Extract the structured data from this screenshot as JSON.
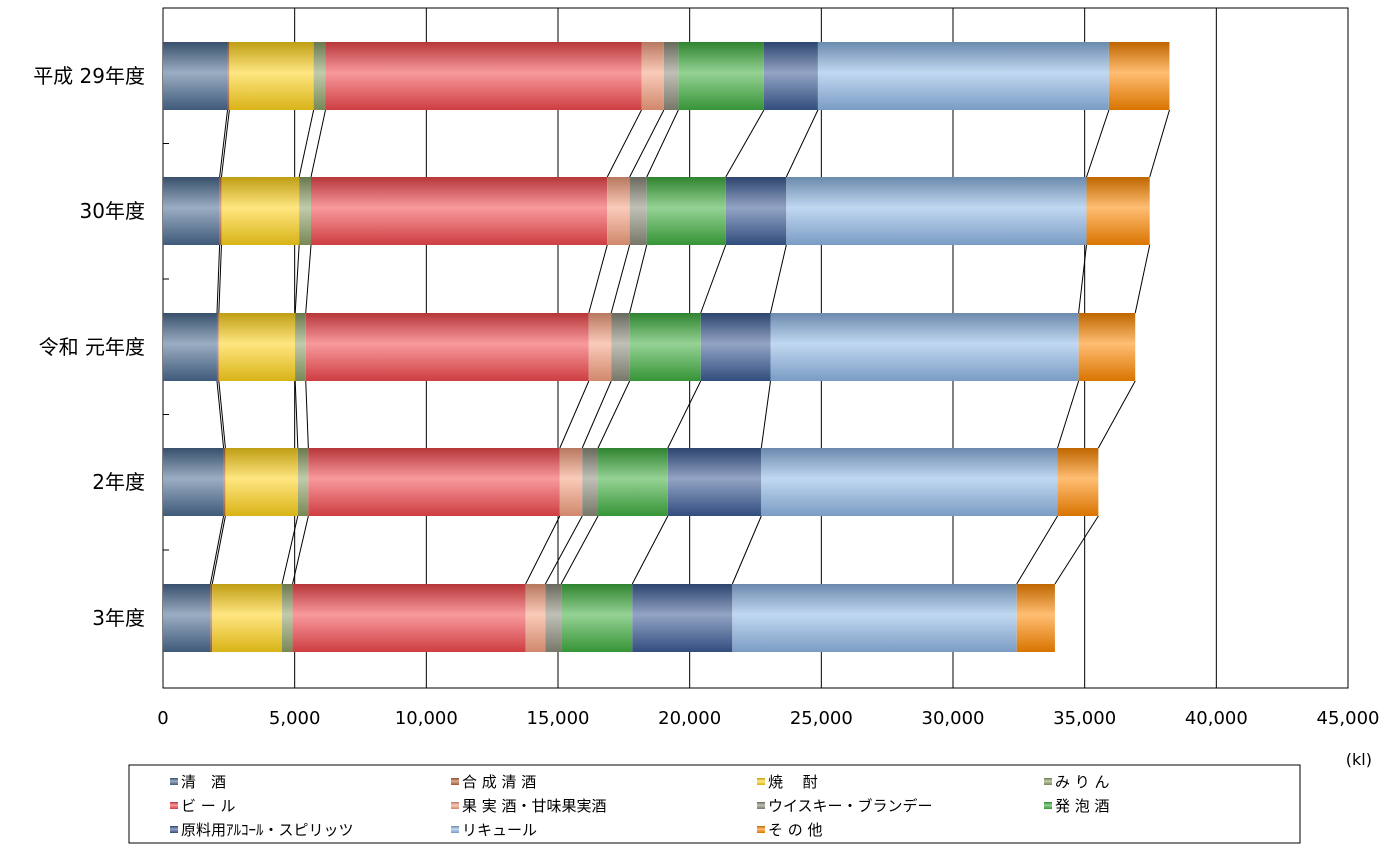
{
  "chart_data": {
    "type": "bar",
    "orientation": "horizontal",
    "stacked": true,
    "categories": [
      "平成 29年度",
      "30年度",
      "令和 元年度",
      "2年度",
      "3年度"
    ],
    "series": [
      {
        "name": "清　酒",
        "values": [
          2450,
          2150,
          2050,
          2300,
          1800
        ],
        "color": "#4a6a90"
      },
      {
        "name": "合 成 清 酒",
        "values": [
          70,
          70,
          70,
          70,
          70
        ],
        "color": "#b8683a"
      },
      {
        "name": "焼　 酎",
        "values": [
          3200,
          2950,
          2900,
          2750,
          2650
        ],
        "color": "#ffd21a"
      },
      {
        "name": "み り ん",
        "values": [
          450,
          450,
          400,
          400,
          400
        ],
        "color": "#8da066"
      },
      {
        "name": "ビ ー ル",
        "values": [
          12000,
          11250,
          10750,
          9550,
          8850
        ],
        "color": "#f2484c"
      },
      {
        "name": "果 実 酒・甘味果実酒",
        "values": [
          850,
          850,
          850,
          850,
          750
        ],
        "color": "#f5a080"
      },
      {
        "name": "ウイスキー・ブランデー",
        "values": [
          550,
          650,
          700,
          600,
          600
        ],
        "color": "#8c8c7c"
      },
      {
        "name": "発 泡 酒",
        "values": [
          3250,
          3000,
          2700,
          2650,
          2700
        ],
        "color": "#3fae3f"
      },
      {
        "name": "原料用ｱﾙｺｰﾙ・スピリッツ",
        "values": [
          2050,
          2300,
          2650,
          3550,
          3800
        ],
        "color": "#3a5a94"
      },
      {
        "name": "リキュール",
        "values": [
          11050,
          11400,
          11700,
          11250,
          10800
        ],
        "color": "#8fb8e6"
      },
      {
        "name": "そ の 他",
        "values": [
          2300,
          2400,
          2150,
          1550,
          1450
        ],
        "color": "#ff8800"
      }
    ],
    "xlim": [
      0,
      45000
    ],
    "x_ticks": [
      "0",
      "5,000",
      "10,000",
      "15,000",
      "20,000",
      "25,000",
      "30,000",
      "35,000",
      "40,000",
      "45,000"
    ],
    "unit": "(kl)",
    "grid": true,
    "legend_position": "bottom"
  }
}
